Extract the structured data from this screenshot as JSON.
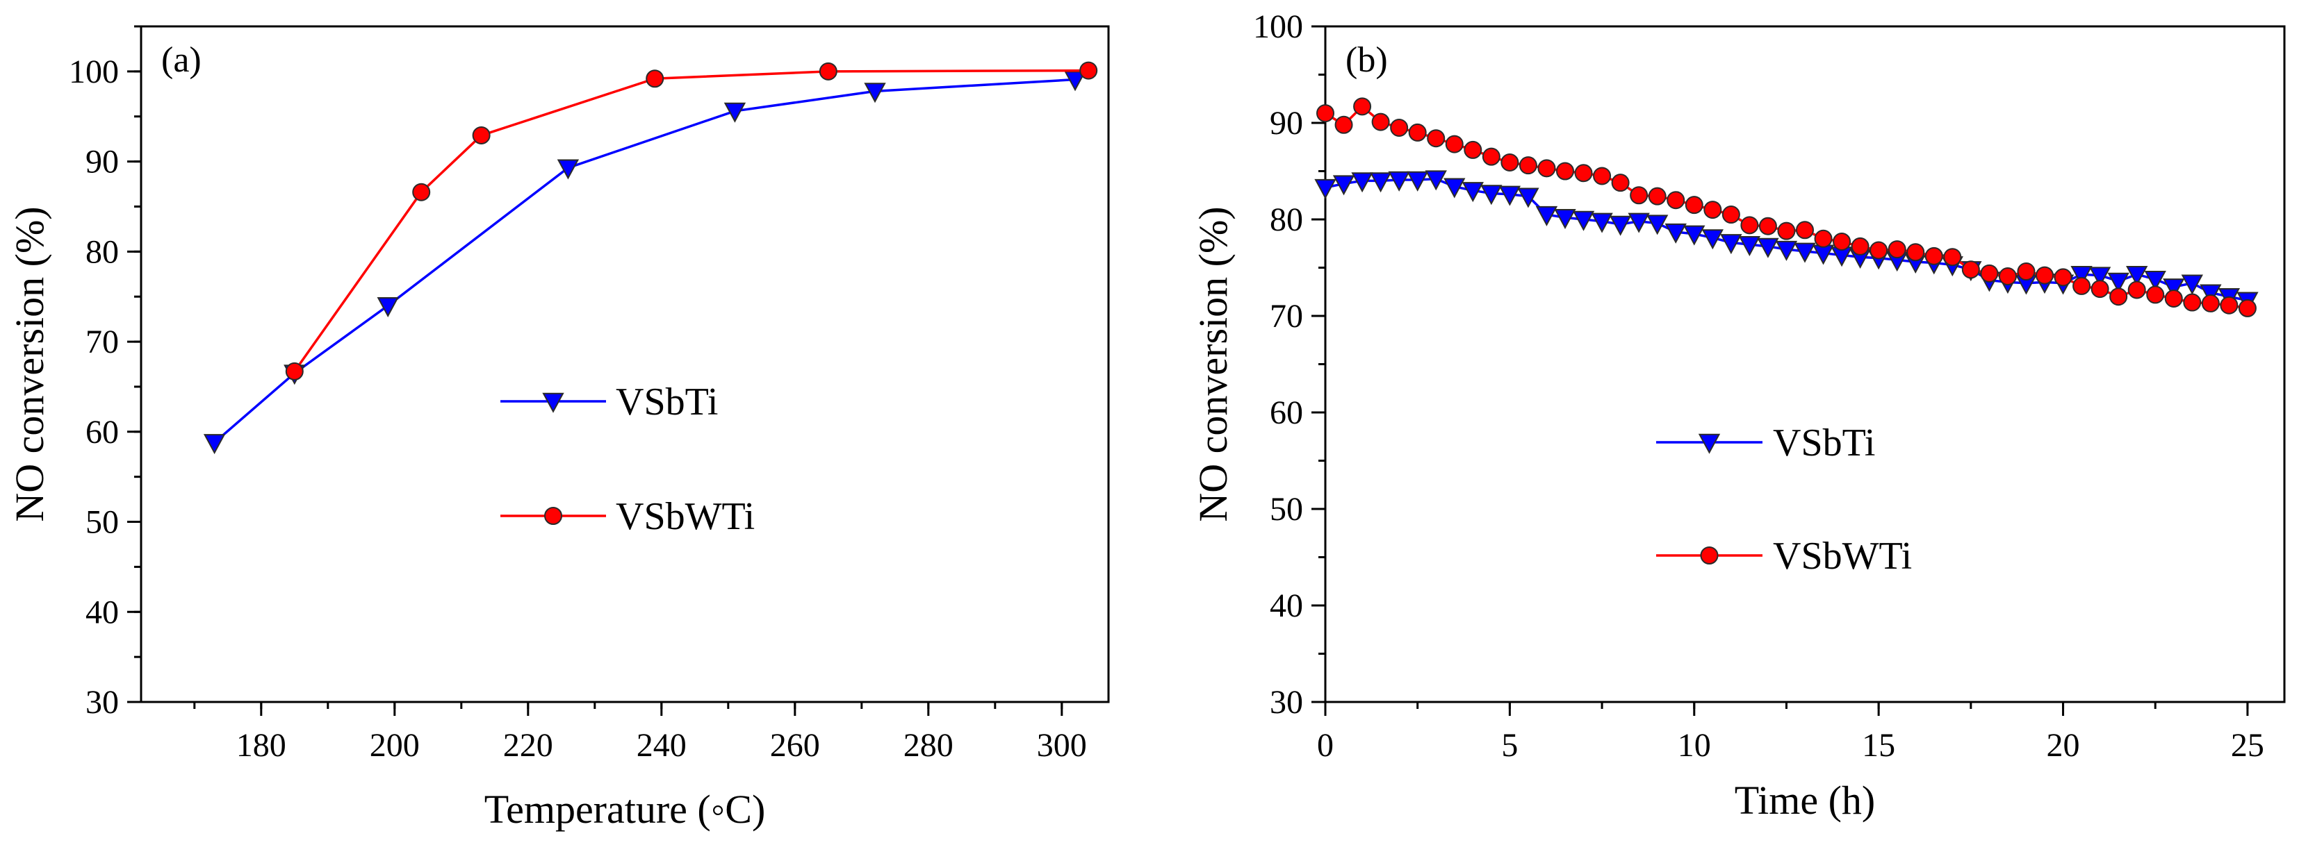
{
  "colors": {
    "vsbti": "#0000ff",
    "vsbwti": "#ff0000",
    "marker_outline": "#2a2a2a",
    "axis": "#000000"
  },
  "chart_data": [
    {
      "type": "line",
      "panel_label": "(a)",
      "xlabel": "Temperature (◦C)",
      "ylabel": "NO conversion (%)",
      "xlim": [
        162,
        307
      ],
      "ylim": [
        30,
        105
      ],
      "xticks": [
        180,
        200,
        220,
        240,
        260,
        280,
        300
      ],
      "yticks": [
        30,
        40,
        50,
        60,
        70,
        80,
        90,
        100
      ],
      "x_minor_step": 10,
      "y_minor_step": 5,
      "legend_position": "center-right",
      "series": [
        {
          "name": "VSbTi",
          "marker": "triangle-down",
          "x": [
            173,
            185,
            199,
            226,
            251,
            272,
            302
          ],
          "y": [
            58.8,
            66.5,
            74.0,
            89.3,
            95.6,
            97.8,
            99.1
          ]
        },
        {
          "name": "VSbWTi",
          "marker": "circle",
          "x": [
            185,
            204,
            213,
            239,
            265,
            304
          ],
          "y": [
            66.7,
            86.6,
            92.9,
            99.2,
            100.0,
            100.1
          ]
        }
      ]
    },
    {
      "type": "line",
      "panel_label": "(b)",
      "xlabel": "Time (h)",
      "ylabel": "NO conversion (%)",
      "xlim": [
        0,
        26
      ],
      "ylim": [
        30,
        100
      ],
      "xticks": [
        0,
        5,
        10,
        15,
        20,
        25
      ],
      "yticks": [
        30,
        40,
        50,
        60,
        70,
        80,
        90,
        100
      ],
      "x_minor_step": 2.5,
      "y_minor_step": 5,
      "legend_position": "center",
      "series": [
        {
          "name": "VSbTi",
          "marker": "triangle-down",
          "x": [
            0,
            0.5,
            1,
            1.5,
            2,
            2.5,
            3,
            3.5,
            4,
            4.5,
            5,
            5.5,
            6,
            6.5,
            7,
            7.5,
            8,
            8.5,
            9,
            9.5,
            10,
            10.5,
            11,
            11.5,
            12,
            12.5,
            13,
            13.5,
            14,
            14.5,
            15,
            15.5,
            16,
            16.5,
            17,
            17.5,
            18,
            18.5,
            19,
            19.5,
            20,
            20.5,
            21,
            21.5,
            22,
            22.5,
            23,
            23.5,
            24,
            24.5,
            25
          ],
          "y": [
            83.3,
            83.7,
            84.0,
            84.0,
            84.1,
            84.1,
            84.2,
            83.4,
            83.0,
            82.7,
            82.6,
            82.4,
            80.5,
            80.2,
            80.0,
            79.8,
            79.5,
            79.8,
            79.6,
            78.7,
            78.5,
            78.1,
            77.6,
            77.4,
            77.2,
            76.9,
            76.7,
            76.5,
            76.3,
            76.1,
            76.0,
            75.8,
            75.6,
            75.5,
            75.3,
            74.8,
            73.7,
            73.5,
            73.4,
            73.5,
            73.4,
            74.3,
            74.2,
            73.6,
            74.3,
            73.8,
            73.0,
            73.4,
            72.4,
            72.0,
            71.6
          ]
        },
        {
          "name": "VSbWTi",
          "marker": "circle",
          "x": [
            0,
            0.5,
            1,
            1.5,
            2,
            2.5,
            3,
            3.5,
            4,
            4.5,
            5,
            5.5,
            6,
            6.5,
            7,
            7.5,
            8,
            8.5,
            9,
            9.5,
            10,
            10.5,
            11,
            11.5,
            12,
            12.5,
            13,
            13.5,
            14,
            14.5,
            15,
            15.5,
            16,
            16.5,
            17,
            17.5,
            18,
            18.5,
            19,
            19.5,
            20,
            20.5,
            21,
            21.5,
            22,
            22.5,
            23,
            23.5,
            24,
            24.5,
            25
          ],
          "y": [
            91.0,
            89.8,
            91.7,
            90.1,
            89.5,
            89.0,
            88.4,
            87.8,
            87.2,
            86.5,
            85.9,
            85.6,
            85.3,
            85.0,
            84.8,
            84.5,
            83.8,
            82.5,
            82.4,
            82.0,
            81.5,
            81.0,
            80.5,
            79.4,
            79.3,
            78.8,
            78.9,
            78.0,
            77.7,
            77.2,
            76.8,
            76.9,
            76.6,
            76.2,
            76.1,
            74.8,
            74.4,
            74.1,
            74.6,
            74.2,
            74.0,
            73.1,
            72.8,
            72.0,
            72.7,
            72.2,
            71.8,
            71.4,
            71.3,
            71.1,
            70.8
          ]
        }
      ]
    }
  ]
}
